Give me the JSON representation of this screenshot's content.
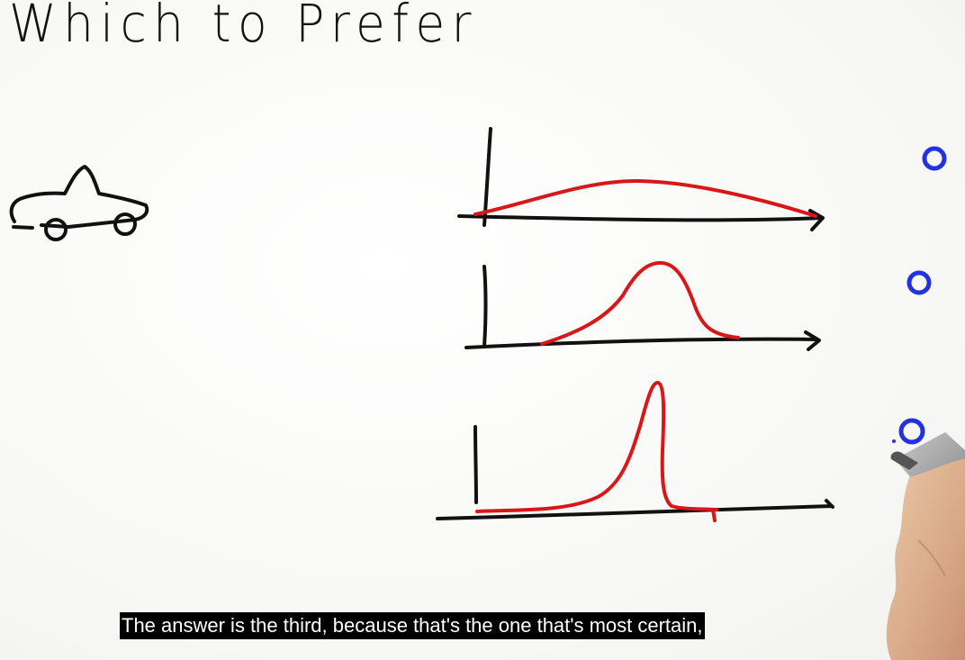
{
  "title": "Which to Prefer",
  "caption": "The answer is the third, because that's the one that's most certain,",
  "icons": {
    "car": "car-sketch-icon",
    "hand": "hand-with-marker-icon"
  },
  "colors": {
    "ink": "#111111",
    "curve": "#d81818",
    "option_circle": "#2233dd",
    "caption_bg": "#000000",
    "caption_text": "#ffffff"
  },
  "options": [
    {
      "label": "wide distribution"
    },
    {
      "label": "medium distribution"
    },
    {
      "label": "narrow distribution"
    }
  ]
}
